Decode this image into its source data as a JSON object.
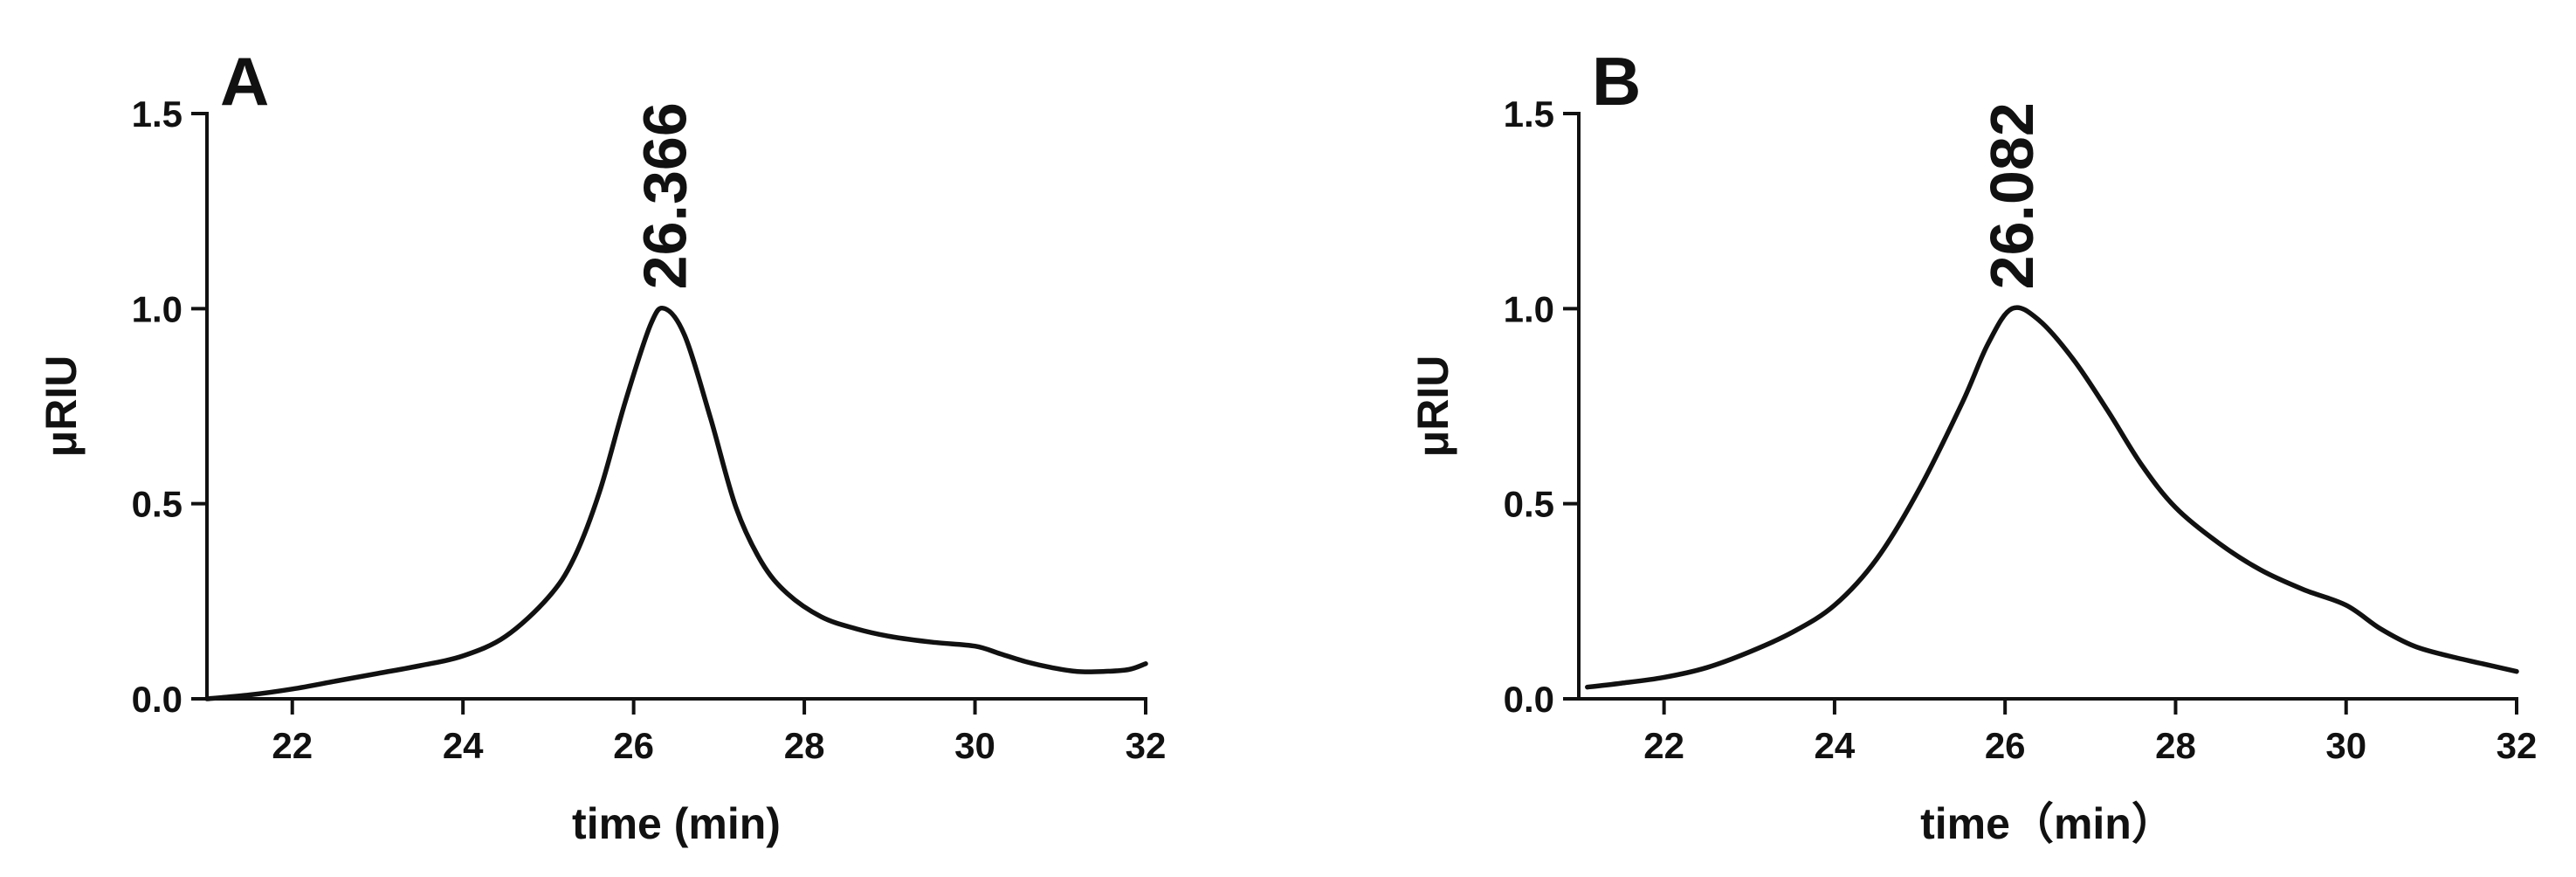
{
  "colors": {
    "line": "#111111",
    "axis": "#111111",
    "background": "#ffffff"
  },
  "chart_data": [
    {
      "type": "line",
      "panel_label": "A",
      "title": "",
      "xlabel": "time (min)",
      "ylabel": "μRIU",
      "xlim": [
        21,
        32
      ],
      "ylim": [
        0,
        1.5
      ],
      "xticks": [
        22,
        24,
        26,
        28,
        30,
        32
      ],
      "xtick_labels": [
        "22",
        "24",
        "26",
        "28",
        "30",
        "32"
      ],
      "yticks": [
        0,
        0.5,
        1.0,
        1.5
      ],
      "ytick_labels": [
        "0.0",
        "0.5",
        "1.0",
        "1.5"
      ],
      "grid": false,
      "annotations": [
        {
          "text": "26.366",
          "x": 26.366,
          "y": 1.0
        }
      ],
      "series": [
        {
          "x": [
            21,
            21.5,
            22,
            22.5,
            23,
            23.5,
            24,
            24.5,
            25,
            25.3,
            25.6,
            25.9,
            26.2,
            26.366,
            26.6,
            26.9,
            27.2,
            27.5,
            27.8,
            28.2,
            28.6,
            29,
            29.5,
            30,
            30.3,
            30.6,
            30.9,
            31.2,
            31.5,
            31.8,
            32
          ],
          "y": [
            0.0,
            0.01,
            0.025,
            0.045,
            0.065,
            0.085,
            0.11,
            0.16,
            0.26,
            0.36,
            0.53,
            0.76,
            0.96,
            1.0,
            0.93,
            0.72,
            0.49,
            0.35,
            0.27,
            0.21,
            0.18,
            0.16,
            0.145,
            0.135,
            0.115,
            0.095,
            0.08,
            0.07,
            0.07,
            0.075,
            0.09
          ]
        }
      ]
    },
    {
      "type": "line",
      "panel_label": "B",
      "title": "",
      "xlabel": "time（min）",
      "ylabel": "μRIU",
      "xlim": [
        21,
        32
      ],
      "ylim": [
        0,
        1.5
      ],
      "xticks": [
        22,
        24,
        26,
        28,
        30,
        32
      ],
      "xtick_labels": [
        "22",
        "24",
        "26",
        "28",
        "30",
        "32"
      ],
      "yticks": [
        0,
        0.5,
        1.0,
        1.5
      ],
      "ytick_labels": [
        "0.0",
        "0.5",
        "1.0",
        "1.5"
      ],
      "grid": false,
      "annotations": [
        {
          "text": "26.082",
          "x": 26.082,
          "y": 1.0
        }
      ],
      "series": [
        {
          "x": [
            21.1,
            21.5,
            22,
            22.5,
            23,
            23.5,
            24,
            24.5,
            25,
            25.5,
            25.8,
            26.082,
            26.4,
            26.8,
            27.2,
            27.6,
            28,
            28.5,
            29,
            29.5,
            30,
            30.4,
            30.8,
            31.2,
            31.6,
            32
          ],
          "y": [
            0.03,
            0.04,
            0.055,
            0.08,
            0.12,
            0.17,
            0.24,
            0.36,
            0.54,
            0.76,
            0.91,
            1.0,
            0.97,
            0.87,
            0.74,
            0.6,
            0.49,
            0.4,
            0.33,
            0.28,
            0.24,
            0.18,
            0.135,
            0.11,
            0.09,
            0.07
          ]
        }
      ]
    }
  ]
}
